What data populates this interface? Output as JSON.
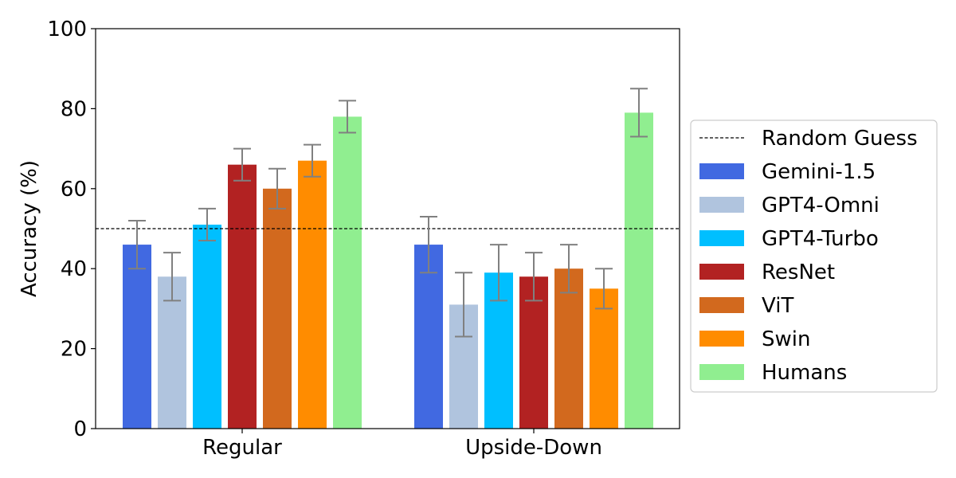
{
  "chart_data": {
    "type": "bar",
    "categories": [
      "Regular",
      "Upside-Down"
    ],
    "ylabel": "Accuracy (%)",
    "xlabel": "",
    "ylim": [
      0,
      100
    ],
    "yticks": [
      0,
      20,
      40,
      60,
      80,
      100
    ],
    "grid": false,
    "legend_position": "right",
    "reference_line": {
      "name": "Random Guess",
      "value": 50,
      "style": "dashed",
      "color": "#000000"
    },
    "series": [
      {
        "name": "Gemini-1.5",
        "color": "#4169E1",
        "values": [
          46,
          46
        ],
        "error_low": [
          40,
          39
        ],
        "error_high": [
          52,
          53
        ]
      },
      {
        "name": "GPT4-Omni",
        "color": "#B0C4DE",
        "values": [
          38,
          31
        ],
        "error_low": [
          32,
          23
        ],
        "error_high": [
          44,
          39
        ]
      },
      {
        "name": "GPT4-Turbo",
        "color": "#00BFFF",
        "values": [
          51,
          39
        ],
        "error_low": [
          47,
          32
        ],
        "error_high": [
          55,
          46
        ]
      },
      {
        "name": "ResNet",
        "color": "#B22222",
        "values": [
          66,
          38
        ],
        "error_low": [
          62,
          32
        ],
        "error_high": [
          70,
          44
        ]
      },
      {
        "name": "ViT",
        "color": "#D2691E",
        "values": [
          60,
          40
        ],
        "error_low": [
          55,
          34
        ],
        "error_high": [
          65,
          46
        ]
      },
      {
        "name": "Swin",
        "color": "#FF8C00",
        "values": [
          67,
          35
        ],
        "error_low": [
          63,
          30
        ],
        "error_high": [
          71,
          40
        ]
      },
      {
        "name": "Humans",
        "color": "#90EE90",
        "values": [
          78,
          79
        ],
        "error_low": [
          74,
          73
        ],
        "error_high": [
          82,
          85
        ]
      }
    ],
    "error_bar_color": "#808080"
  }
}
